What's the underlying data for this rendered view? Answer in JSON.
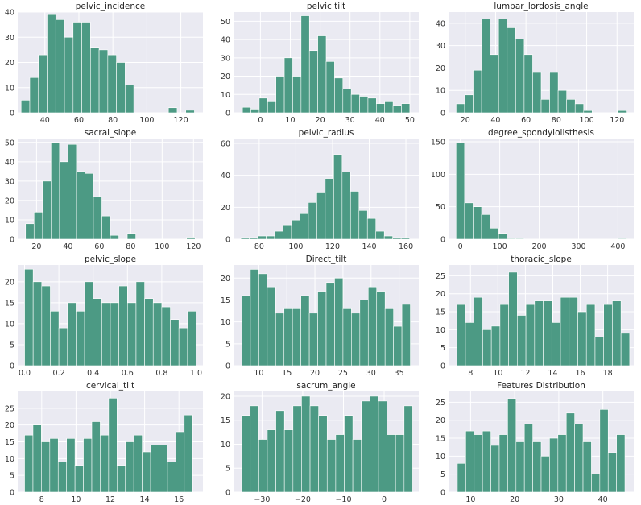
{
  "bar_color": "#4c9a84",
  "background": "#eaeaf2",
  "chart_data": [
    {
      "type": "bar",
      "title": "pelvic_incidence",
      "xlim": [
        24,
        133
      ],
      "ylim": [
        0,
        40
      ],
      "x_ticks": [
        40,
        60,
        80,
        100,
        120
      ],
      "y_ticks": [
        0,
        10,
        20,
        30,
        40
      ],
      "bins": {
        "start": 26,
        "width": 5.1,
        "values": [
          5,
          14,
          23,
          39,
          37,
          30,
          36,
          36,
          26,
          25,
          23,
          20,
          11,
          0,
          0,
          0,
          0,
          2,
          0,
          1
        ]
      }
    },
    {
      "type": "bar",
      "title": "pelvic tilt",
      "xlim": [
        -9,
        53
      ],
      "ylim": [
        0,
        55
      ],
      "x_ticks": [
        0,
        10,
        20,
        30,
        40,
        50
      ],
      "y_ticks": [
        0,
        10,
        20,
        30,
        40,
        50
      ],
      "bins": {
        "start": -6,
        "width": 2.8,
        "values": [
          3,
          2,
          8,
          6,
          20,
          30,
          20,
          53,
          34,
          42,
          28,
          19,
          13,
          10,
          9,
          8,
          5,
          6,
          4,
          5
        ]
      }
    },
    {
      "type": "bar",
      "title": "lumbar_lordosis_angle",
      "xlim": [
        9,
        131
      ],
      "ylim": [
        0,
        45
      ],
      "x_ticks": [
        20,
        40,
        60,
        80,
        100,
        120
      ],
      "y_ticks": [
        0,
        10,
        20,
        30,
        40
      ],
      "bins": {
        "start": 14,
        "width": 5.6,
        "values": [
          4,
          8,
          19,
          42,
          26,
          42,
          38,
          33,
          26,
          18,
          6,
          18,
          10,
          6,
          4,
          1,
          0,
          0,
          0,
          1
        ]
      }
    },
    {
      "type": "bar",
      "title": "sacral_slope",
      "xlim": [
        8,
        126
      ],
      "ylim": [
        0,
        52
      ],
      "x_ticks": [
        20,
        40,
        60,
        80,
        100,
        120
      ],
      "y_ticks": [
        0,
        10,
        20,
        30,
        40,
        50
      ],
      "bins": {
        "start": 13,
        "width": 5.4,
        "values": [
          8,
          14,
          30,
          50,
          40,
          49,
          35,
          34,
          22,
          12,
          2,
          0,
          3,
          0,
          0,
          0,
          0,
          0,
          0,
          1
        ]
      }
    },
    {
      "type": "bar",
      "title": "pelvic_radius",
      "xlim": [
        66,
        167
      ],
      "ylim": [
        0,
        63
      ],
      "x_ticks": [
        80,
        100,
        120,
        140,
        160
      ],
      "y_ticks": [
        0,
        20,
        40,
        60
      ],
      "bins": {
        "start": 70,
        "width": 4.6,
        "values": [
          1,
          1,
          2,
          2,
          5,
          9,
          12,
          16,
          23,
          29,
          38,
          53,
          42,
          30,
          18,
          13,
          5,
          2,
          1,
          1
        ]
      }
    },
    {
      "type": "bar",
      "title": "degree_spondylolisthesis",
      "xlim": [
        -30,
        440
      ],
      "ylim": [
        0,
        155
      ],
      "x_ticks": [
        0,
        100,
        200,
        300,
        400
      ],
      "y_ticks": [
        0,
        50,
        100,
        150
      ],
      "bins": {
        "start": -11,
        "width": 21.6,
        "values": [
          148,
          56,
          50,
          38,
          17,
          9,
          1,
          1,
          0,
          0,
          0,
          0,
          0,
          0,
          0,
          0,
          0,
          0,
          0,
          1
        ]
      }
    },
    {
      "type": "bar",
      "title": "pelvic_slope",
      "xlim": [
        -0.04,
        1.04
      ],
      "ylim": [
        0,
        24
      ],
      "x_ticks": [
        0.0,
        0.2,
        0.4,
        0.6,
        0.8,
        1.0
      ],
      "y_ticks": [
        0,
        5,
        10,
        15,
        20
      ],
      "bins": {
        "start": 0.0,
        "width": 0.05,
        "values": [
          23,
          20,
          19,
          13,
          9,
          15,
          13,
          20,
          16,
          15,
          15,
          19,
          15,
          20,
          16,
          15,
          14,
          11,
          9,
          13
        ]
      }
    },
    {
      "type": "bar",
      "title": "Direct_tilt",
      "xlim": [
        5.5,
        38.5
      ],
      "ylim": [
        0,
        23
      ],
      "x_ticks": [
        10,
        15,
        20,
        25,
        30,
        35
      ],
      "y_ticks": [
        0,
        5,
        10,
        15,
        20
      ],
      "bins": {
        "start": 7,
        "width": 1.5,
        "values": [
          16,
          22,
          21,
          18,
          12,
          13,
          13,
          16,
          12,
          17,
          19,
          20,
          13,
          12,
          15,
          18,
          17,
          13,
          9,
          14
        ]
      }
    },
    {
      "type": "bar",
      "title": "thoracic_slope",
      "xlim": [
        6.4,
        19.9
      ],
      "ylim": [
        0,
        28
      ],
      "x_ticks": [
        8,
        10,
        12,
        14,
        16,
        18
      ],
      "y_ticks": [
        0,
        5,
        10,
        15,
        20,
        25
      ],
      "bins": {
        "start": 7.0,
        "width": 0.63,
        "values": [
          17,
          12,
          19,
          10,
          11,
          17,
          26,
          14,
          17,
          18,
          18,
          12,
          19,
          19,
          15,
          17,
          8,
          17,
          18,
          9
        ]
      }
    },
    {
      "type": "bar",
      "title": "cervical_tilt",
      "xlim": [
        6.6,
        17.4
      ],
      "ylim": [
        0,
        30
      ],
      "x_ticks": [
        8,
        10,
        12,
        14,
        16
      ],
      "y_ticks": [
        0,
        5,
        10,
        15,
        20,
        25
      ],
      "bins": {
        "start": 7.0,
        "width": 0.49,
        "values": [
          17,
          20,
          15,
          16,
          9,
          16,
          8,
          16,
          21,
          17,
          28,
          8,
          15,
          17,
          12,
          14,
          14,
          9,
          18,
          23
        ]
      }
    },
    {
      "type": "bar",
      "title": "sacrum_angle",
      "xlim": [
        -37,
        8.5
      ],
      "ylim": [
        0,
        21
      ],
      "x_ticks": [
        -30,
        -20,
        -10,
        0
      ],
      "y_ticks": [
        0,
        5,
        10,
        15,
        20
      ],
      "bins": {
        "start": -35,
        "width": 2.1,
        "values": [
          16,
          18,
          11,
          13,
          17,
          13,
          18,
          20,
          18,
          16,
          11,
          12,
          16,
          11,
          19,
          20,
          19,
          12,
          12,
          18
        ]
      }
    },
    {
      "type": "bar",
      "title": "Features Distribution",
      "xlim": [
        5,
        47
      ],
      "ylim": [
        0,
        28
      ],
      "x_ticks": [
        10,
        20,
        30,
        40
      ],
      "y_ticks": [
        0,
        5,
        10,
        15,
        20,
        25
      ],
      "bins": {
        "start": 7,
        "width": 1.9,
        "values": [
          8,
          17,
          16,
          17,
          13,
          16,
          26,
          14,
          19,
          14,
          10,
          15,
          16,
          22,
          19,
          14,
          5,
          23,
          11,
          16
        ]
      }
    }
  ]
}
